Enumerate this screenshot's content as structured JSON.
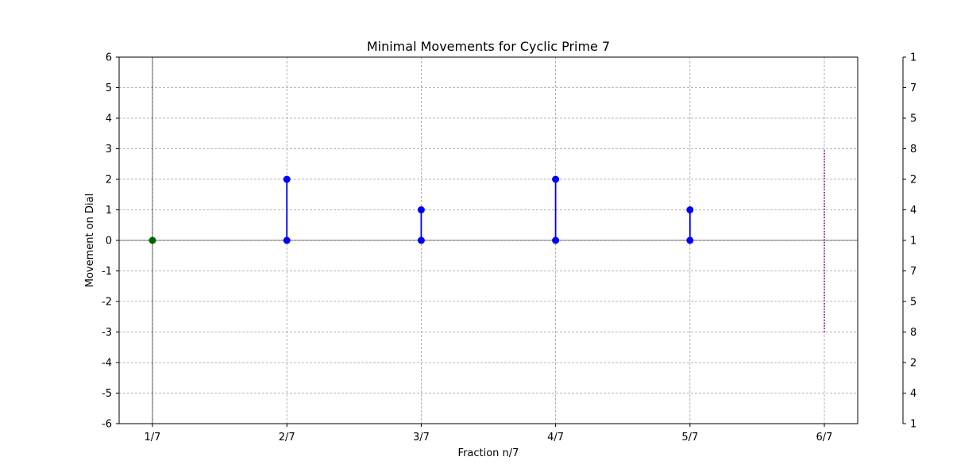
{
  "chart_data": {
    "type": "line",
    "title": "Minimal Movements for Cyclic Prime 7",
    "xlabel": "Fraction n/7",
    "ylabel": "Movement on Dial",
    "categories": [
      "1/7",
      "2/7",
      "3/7",
      "4/7",
      "5/7",
      "6/7"
    ],
    "ylim": [
      -6,
      6
    ],
    "yticks": [
      -6,
      -5,
      -4,
      -3,
      -2,
      -1,
      0,
      1,
      2,
      3,
      4,
      5,
      6
    ],
    "right_axis_labels": [
      "1",
      "4",
      "2",
      "8",
      "5",
      "7",
      "1",
      "4",
      "2",
      "8",
      "5",
      "7",
      "1"
    ],
    "grid": true,
    "start_point": {
      "category": "1/7",
      "value": 0,
      "color": "#006400"
    },
    "movements": [
      {
        "category": "2/7",
        "from": 0,
        "to": 2
      },
      {
        "category": "3/7",
        "from": 0,
        "to": 1
      },
      {
        "category": "4/7",
        "from": 0,
        "to": 2
      },
      {
        "category": "5/7",
        "from": 0,
        "to": 1
      }
    ],
    "dotted_range": {
      "category": "6/7",
      "from": -3,
      "to": 3,
      "color": "#800080"
    },
    "series_color": "#0000ff"
  }
}
